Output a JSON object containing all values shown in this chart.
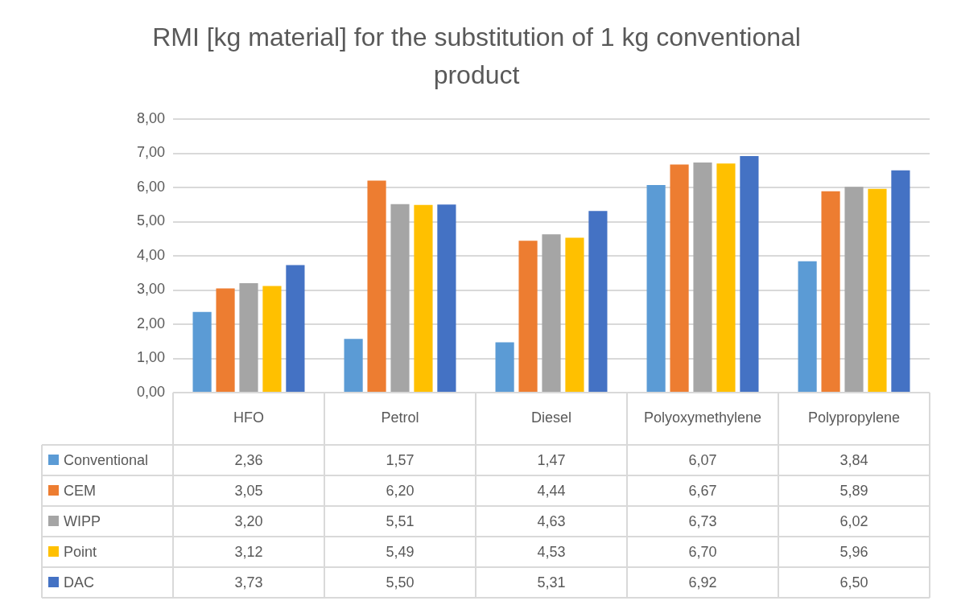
{
  "chart_data": {
    "type": "bar",
    "title": "RMI [kg material] for the substitution of 1 kg conventional product",
    "categories": [
      "HFO",
      "Petrol",
      "Diesel",
      "Polyoxymethylene",
      "Polypropylene"
    ],
    "series": [
      {
        "name": "Conventional",
        "color": "#5b9bd5",
        "values": [
          2.36,
          1.57,
          1.47,
          6.07,
          3.84
        ],
        "value_labels": [
          "2,36",
          "1,57",
          "1,47",
          "6,07",
          "3,84"
        ]
      },
      {
        "name": "CEM",
        "color": "#ed7d31",
        "values": [
          3.05,
          6.2,
          4.44,
          6.67,
          5.89
        ],
        "value_labels": [
          "3,05",
          "6,20",
          "4,44",
          "6,67",
          "5,89"
        ]
      },
      {
        "name": "WIPP",
        "color": "#a5a5a5",
        "values": [
          3.2,
          5.51,
          4.63,
          6.73,
          6.02
        ],
        "value_labels": [
          "3,20",
          "5,51",
          "4,63",
          "6,73",
          "6,02"
        ]
      },
      {
        "name": "Point",
        "color": "#ffc000",
        "values": [
          3.12,
          5.49,
          4.53,
          6.7,
          5.96
        ],
        "value_labels": [
          "3,12",
          "5,49",
          "4,53",
          "6,70",
          "5,96"
        ]
      },
      {
        "name": "DAC",
        "color": "#4472c4",
        "values": [
          3.73,
          5.5,
          5.31,
          6.92,
          6.5
        ],
        "value_labels": [
          "3,73",
          "5,50",
          "5,31",
          "6,92",
          "6,50"
        ]
      }
    ],
    "ylim": [
      0,
      8
    ],
    "yticks": [
      {
        "value": 0,
        "label": "0,00"
      },
      {
        "value": 1,
        "label": "1,00"
      },
      {
        "value": 2,
        "label": "2,00"
      },
      {
        "value": 3,
        "label": "3,00"
      },
      {
        "value": 4,
        "label": "4,00"
      },
      {
        "value": 5,
        "label": "5,00"
      },
      {
        "value": 6,
        "label": "6,00"
      },
      {
        "value": 7,
        "label": "7,00"
      },
      {
        "value": 8,
        "label": "8,00"
      }
    ],
    "grid": "y",
    "legend": "bottom left"
  }
}
